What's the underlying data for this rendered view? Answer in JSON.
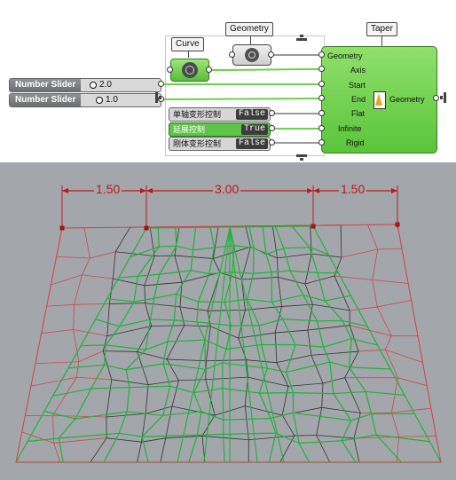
{
  "components": {
    "curve": {
      "tag": "Curve"
    },
    "geometry": {
      "tag": "Geometry"
    },
    "taper": {
      "tag": "Taper",
      "inputs": [
        "Geometry",
        "Axis",
        "Start",
        "End",
        "Flat",
        "Infinite",
        "Rigid"
      ],
      "output": "Geometry"
    }
  },
  "sliders": [
    {
      "label": "Number Slider",
      "value": "2.0"
    },
    {
      "label": "Number Slider",
      "value": "1.0"
    }
  ],
  "toggles": [
    {
      "label": "单轴变形控制",
      "value": "False"
    },
    {
      "label": "延展控制",
      "value": "True"
    },
    {
      "label": "刚体变形控制",
      "value": "False"
    }
  ],
  "dimensions": [
    "1.50",
    "3.00",
    "1.50"
  ],
  "colors": {
    "wire_green": "#6ccf4e",
    "wire_grey": "#9a9a9a",
    "component_green": "#5bc43b",
    "mesh_green": "#1fb33a",
    "mesh_red": "#d04848",
    "mesh_dark": "#333333",
    "dim_red": "#c01818",
    "viewport_bg": "#a3a6ab"
  }
}
